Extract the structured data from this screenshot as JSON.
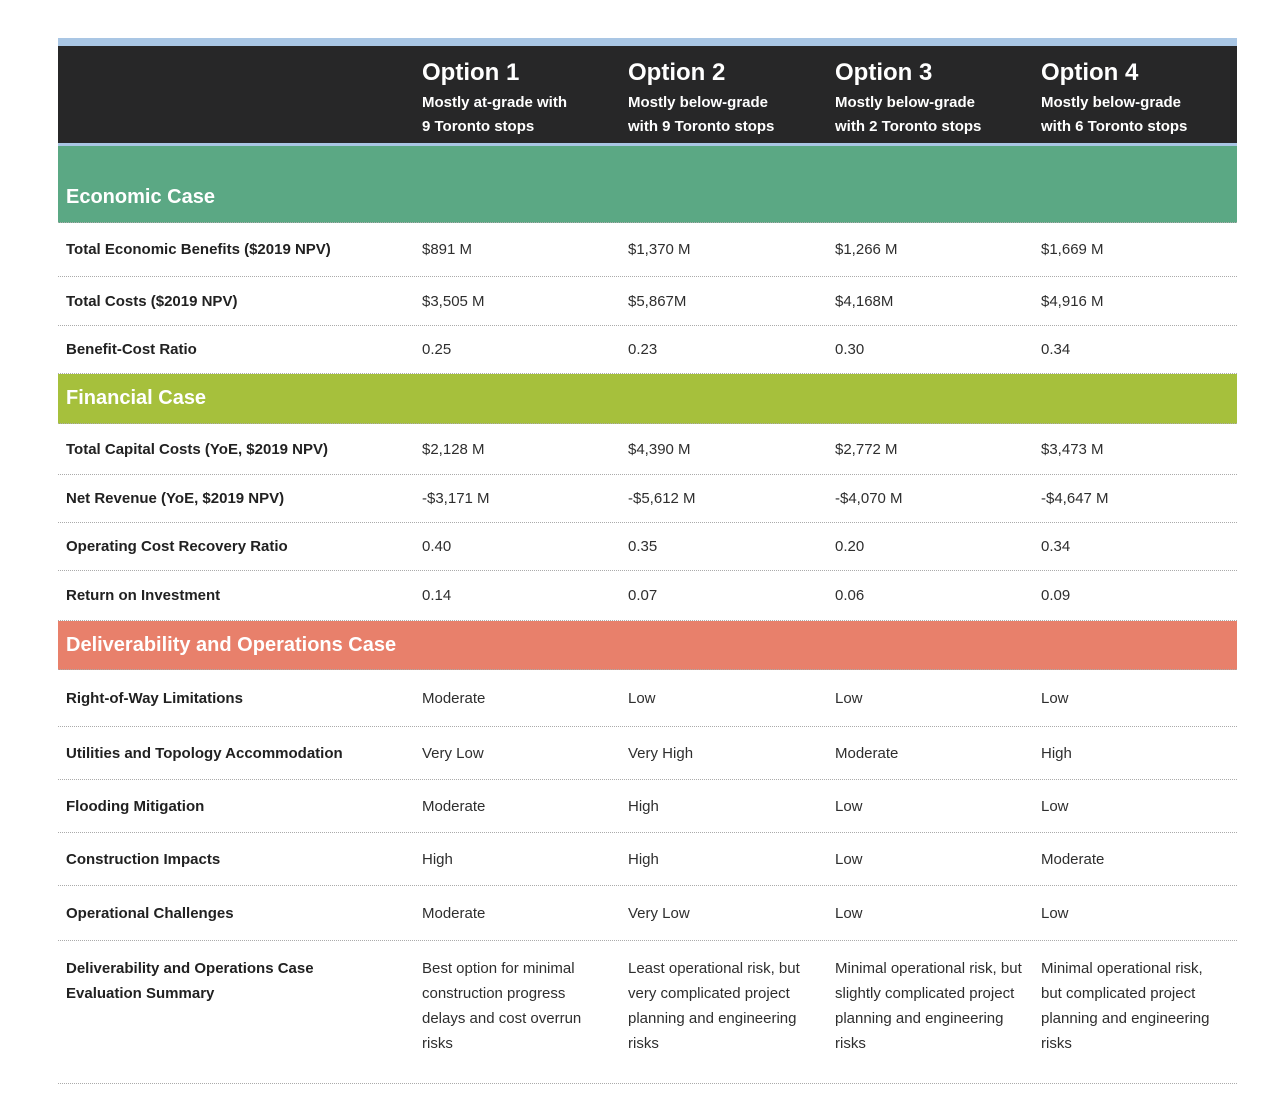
{
  "table": {
    "accent_bar_color": "#a9c6e4",
    "header_bg": "#272728",
    "columns": [
      {
        "title": "Option 1",
        "subtitle_line1": "Mostly at-grade with",
        "subtitle_line2": "9 Toronto stops"
      },
      {
        "title": "Option 2",
        "subtitle_line1": "Mostly below-grade",
        "subtitle_line2": "with 9 Toronto stops"
      },
      {
        "title": "Option 3",
        "subtitle_line1": "Mostly below-grade",
        "subtitle_line2": "with 2 Toronto stops"
      },
      {
        "title": "Option 4",
        "subtitle_line1": "Mostly below-grade",
        "subtitle_line2": "with 6 Toronto stops"
      }
    ],
    "sections": [
      {
        "title": "Economic Case",
        "color": "#5ba884",
        "rows": [
          {
            "label": "Total Economic Benefits ($2019 NPV)",
            "values": [
              "$891 M",
              "$1,370 M",
              "$1,266 M",
              "$1,669 M"
            ]
          },
          {
            "label": "Total Costs ($2019 NPV)",
            "values": [
              "$3,505 M",
              "$5,867M",
              "$4,168M",
              "$4,916 M"
            ]
          },
          {
            "label": "Benefit-Cost Ratio",
            "values": [
              "0.25",
              "0.23",
              "0.30",
              "0.34"
            ]
          }
        ]
      },
      {
        "title": "Financial Case",
        "color": "#a6c03c",
        "rows": [
          {
            "label": "Total Capital Costs (YoE, $2019 NPV)",
            "values": [
              "$2,128 M",
              "$4,390 M",
              "$2,772 M",
              "$3,473 M"
            ]
          },
          {
            "label": "Net Revenue (YoE, $2019 NPV)",
            "values": [
              "-$3,171 M",
              "-$5,612 M",
              "-$4,070 M",
              "-$4,647 M"
            ]
          },
          {
            "label": "Operating Cost Recovery Ratio",
            "values": [
              "0.40",
              "0.35",
              "0.20",
              "0.34"
            ]
          },
          {
            "label": "Return on Investment",
            "values": [
              "0.14",
              "0.07",
              "0.06",
              "0.09"
            ]
          }
        ]
      },
      {
        "title": "Deliverability and Operations Case",
        "color": "#e8806b",
        "rows": [
          {
            "label": "Right-of-Way Limitations",
            "values": [
              "Moderate",
              "Low",
              "Low",
              "Low"
            ]
          },
          {
            "label": "Utilities and Topology Accommodation",
            "values": [
              "Very Low",
              "Very High",
              "Moderate",
              "High"
            ]
          },
          {
            "label": "Flooding Mitigation",
            "values": [
              "Moderate",
              "High",
              "Low",
              "Low"
            ]
          },
          {
            "label": "Construction Impacts",
            "values": [
              "High",
              "High",
              "Low",
              "Moderate"
            ]
          },
          {
            "label": "Operational Challenges",
            "values": [
              "Moderate",
              "Very Low",
              "Low",
              "Low"
            ]
          },
          {
            "label": "Deliverability and Operations Case Evaluation Summary",
            "values": [
              "Best option for minimal construction progress delays and cost overrun risks",
              "Least operational risk, but very complicated project planning and engineering risks",
              "Minimal operational risk, but slightly complicated project planning and engineering risks",
              "Minimal operational risk, but complicated project planning and engineering risks"
            ]
          }
        ]
      }
    ]
  }
}
